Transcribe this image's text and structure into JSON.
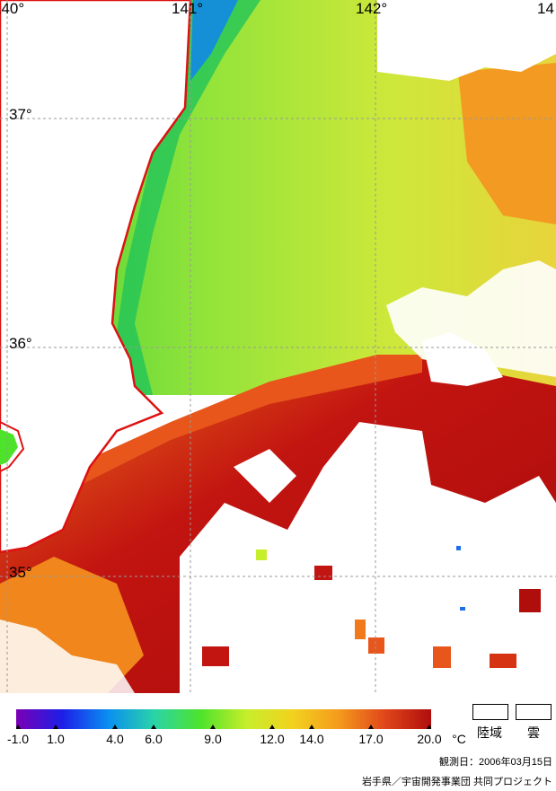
{
  "map": {
    "lon_labels": [
      "140°",
      "141°",
      "142°",
      "14"
    ],
    "lat_labels": [
      "37°",
      "36°",
      "35°"
    ],
    "colors": {
      "land": "#ffffff",
      "coast": "#dd1111",
      "grid": "#999999"
    }
  },
  "colorbar": {
    "ticks": [
      "-1.0",
      "1.0",
      "4.0",
      "6.0",
      "9.0",
      "12.0",
      "14.0",
      "17.0",
      "20.0"
    ],
    "unit": "°C",
    "stops": [
      "#7a00b5",
      "#1d1ee8",
      "#0a8ff0",
      "#2ad4a8",
      "#4ee32b",
      "#c7ee2b",
      "#f2d21e",
      "#f59a1d",
      "#e0461a",
      "#b00d0d"
    ]
  },
  "legend": {
    "land_label": "陸域",
    "cloud_label": "雲"
  },
  "footer": {
    "observation": "観測日：2006年03月15日",
    "credit": "岩手県／宇宙開発事業団 共同プロジェクト"
  }
}
